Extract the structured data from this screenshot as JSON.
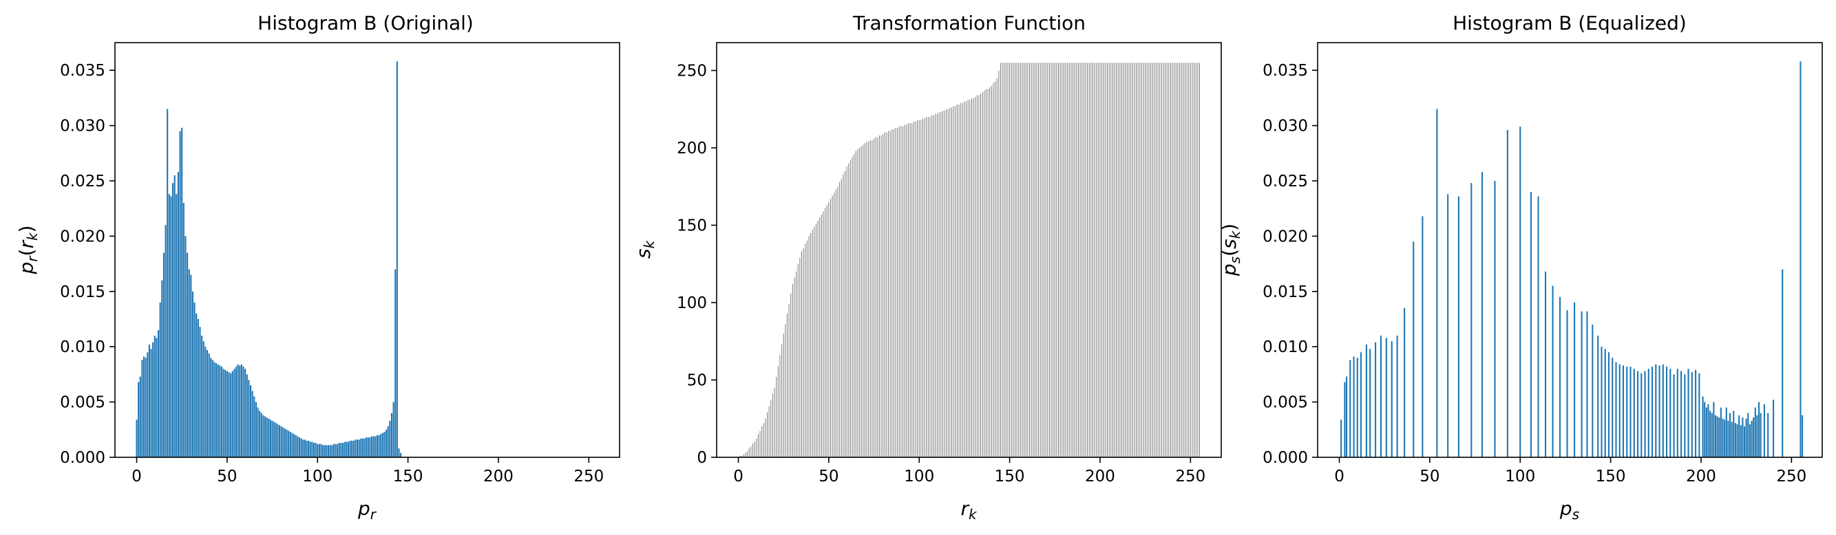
{
  "figure": {
    "background": "#ffffff"
  },
  "chart_data": [
    {
      "type": "bar",
      "title": "Histogram B (Original)",
      "xlabel_base": "p",
      "xlabel_sub": "r",
      "ylabel_base": "p",
      "ylabel_sub": "r",
      "ylabel_arg_base": "r",
      "ylabel_arg_sub": "k",
      "xlim": [
        -12,
        267
      ],
      "ylim": [
        0,
        0.0375
      ],
      "xticks": [
        0,
        50,
        100,
        150,
        200,
        250
      ],
      "yticks": [
        0.0,
        0.005,
        0.01,
        0.015,
        0.02,
        0.025,
        0.03,
        0.035
      ],
      "ytick_labels": [
        "0.000",
        "0.005",
        "0.010",
        "0.015",
        "0.020",
        "0.025",
        "0.030",
        "0.035"
      ],
      "color": "#1f77b4",
      "bar_width": 0.8,
      "x_start": 0,
      "values": [
        0.0034,
        0.0068,
        0.0073,
        0.0088,
        0.0091,
        0.009,
        0.0095,
        0.0102,
        0.0098,
        0.0104,
        0.011,
        0.0108,
        0.0115,
        0.014,
        0.016,
        0.0185,
        0.021,
        0.0315,
        0.0238,
        0.0236,
        0.0248,
        0.0255,
        0.0238,
        0.0258,
        0.0295,
        0.0298,
        0.023,
        0.02,
        0.0185,
        0.017,
        0.0165,
        0.015,
        0.014,
        0.013,
        0.0125,
        0.0118,
        0.011,
        0.0105,
        0.01,
        0.0097,
        0.0094,
        0.009,
        0.0088,
        0.0086,
        0.0085,
        0.0084,
        0.0083,
        0.0082,
        0.008,
        0.0079,
        0.0078,
        0.0077,
        0.0076,
        0.0078,
        0.008,
        0.0082,
        0.0084,
        0.0083,
        0.0084,
        0.0082,
        0.008,
        0.0075,
        0.007,
        0.0065,
        0.006,
        0.0055,
        0.005,
        0.0045,
        0.0042,
        0.004,
        0.0038,
        0.0037,
        0.0036,
        0.0035,
        0.0034,
        0.0033,
        0.0032,
        0.0031,
        0.003,
        0.0029,
        0.0028,
        0.0027,
        0.0026,
        0.0025,
        0.0024,
        0.0023,
        0.0022,
        0.0021,
        0.002,
        0.0019,
        0.0018,
        0.0017,
        0.0016,
        0.0016,
        0.0015,
        0.0015,
        0.0014,
        0.0014,
        0.0013,
        0.0013,
        0.0012,
        0.0012,
        0.0012,
        0.0011,
        0.0011,
        0.0011,
        0.0011,
        0.0011,
        0.0011,
        0.0012,
        0.0012,
        0.0012,
        0.0013,
        0.0013,
        0.0013,
        0.0014,
        0.0014,
        0.0014,
        0.0015,
        0.0015,
        0.0015,
        0.0016,
        0.0016,
        0.0016,
        0.0017,
        0.0017,
        0.0017,
        0.0018,
        0.0018,
        0.0018,
        0.0019,
        0.0019,
        0.0019,
        0.002,
        0.002,
        0.0021,
        0.0022,
        0.0023,
        0.0025,
        0.0028,
        0.0033,
        0.004,
        0.005,
        0.017,
        0.0358,
        0.0008,
        0.0004
      ]
    },
    {
      "type": "bar",
      "title": "Transformation Function",
      "xlabel_base": "r",
      "xlabel_sub": "k",
      "ylabel_base": "s",
      "ylabel_sub": "k",
      "xlim": [
        -12,
        267
      ],
      "ylim": [
        0,
        268
      ],
      "xticks": [
        0,
        50,
        100,
        150,
        200,
        250
      ],
      "yticks": [
        0,
        50,
        100,
        150,
        200,
        250
      ],
      "ytick_labels": [
        "0",
        "50",
        "100",
        "150",
        "200",
        "250"
      ],
      "color": "#808080",
      "bar_width": 0.4,
      "x_start": 0,
      "count": 256,
      "curve_points": [
        [
          0,
          0
        ],
        [
          2,
          1
        ],
        [
          5,
          4
        ],
        [
          10,
          12
        ],
        [
          15,
          25
        ],
        [
          20,
          45
        ],
        [
          25,
          80
        ],
        [
          30,
          112
        ],
        [
          35,
          133
        ],
        [
          40,
          145
        ],
        [
          45,
          155
        ],
        [
          50,
          165
        ],
        [
          55,
          175
        ],
        [
          60,
          188
        ],
        [
          65,
          198
        ],
        [
          70,
          203
        ],
        [
          80,
          209
        ],
        [
          90,
          214
        ],
        [
          100,
          218
        ],
        [
          110,
          222
        ],
        [
          120,
          227
        ],
        [
          130,
          232
        ],
        [
          135,
          236
        ],
        [
          140,
          240
        ],
        [
          143,
          245
        ],
        [
          145,
          255
        ],
        [
          255,
          255
        ]
      ]
    },
    {
      "type": "bar",
      "title": "Histogram B (Equalized)",
      "xlabel_base": "p",
      "xlabel_sub": "s",
      "ylabel_base": "p",
      "ylabel_sub": "s",
      "ylabel_arg_base": "s",
      "ylabel_arg_sub": "k",
      "xlim": [
        -12,
        267
      ],
      "ylim": [
        0,
        0.0375
      ],
      "xticks": [
        0,
        50,
        100,
        150,
        200,
        250
      ],
      "yticks": [
        0.0,
        0.005,
        0.01,
        0.015,
        0.02,
        0.025,
        0.03,
        0.035
      ],
      "ytick_labels": [
        "0.000",
        "0.005",
        "0.010",
        "0.015",
        "0.020",
        "0.025",
        "0.030",
        "0.035"
      ],
      "color": "#1f77b4",
      "bar_width": 0.8,
      "points": [
        [
          1,
          0.0034
        ],
        [
          3,
          0.0068
        ],
        [
          4,
          0.0073
        ],
        [
          6,
          0.0088
        ],
        [
          8,
          0.0091
        ],
        [
          10,
          0.009
        ],
        [
          12,
          0.0095
        ],
        [
          15,
          0.0102
        ],
        [
          17,
          0.0098
        ],
        [
          20,
          0.0104
        ],
        [
          23,
          0.011
        ],
        [
          26,
          0.0108
        ],
        [
          29,
          0.0105
        ],
        [
          32,
          0.011
        ],
        [
          36,
          0.0135
        ],
        [
          41,
          0.0195
        ],
        [
          46,
          0.0218
        ],
        [
          54,
          0.0315
        ],
        [
          60,
          0.0238
        ],
        [
          66,
          0.0236
        ],
        [
          73,
          0.0248
        ],
        [
          79,
          0.0258
        ],
        [
          86,
          0.025
        ],
        [
          93,
          0.0296
        ],
        [
          100,
          0.0299
        ],
        [
          106,
          0.024
        ],
        [
          110,
          0.0236
        ],
        [
          114,
          0.0168
        ],
        [
          118,
          0.0155
        ],
        [
          122,
          0.0145
        ],
        [
          126,
          0.0133
        ],
        [
          130,
          0.014
        ],
        [
          134,
          0.0132
        ],
        [
          137,
          0.0132
        ],
        [
          140,
          0.012
        ],
        [
          143,
          0.011
        ],
        [
          145,
          0.01
        ],
        [
          147,
          0.0098
        ],
        [
          149,
          0.0095
        ],
        [
          151,
          0.009
        ],
        [
          153,
          0.0086
        ],
        [
          155,
          0.0084
        ],
        [
          157,
          0.0083
        ],
        [
          159,
          0.0082
        ],
        [
          161,
          0.0082
        ],
        [
          163,
          0.008
        ],
        [
          165,
          0.0078
        ],
        [
          167,
          0.0076
        ],
        [
          169,
          0.0078
        ],
        [
          171,
          0.008
        ],
        [
          173,
          0.0082
        ],
        [
          175,
          0.0084
        ],
        [
          177,
          0.0083
        ],
        [
          179,
          0.0084
        ],
        [
          181,
          0.0082
        ],
        [
          183,
          0.008
        ],
        [
          185,
          0.0075
        ],
        [
          187,
          0.008
        ],
        [
          189,
          0.0078
        ],
        [
          191,
          0.0075
        ],
        [
          193,
          0.008
        ],
        [
          195,
          0.0077
        ],
        [
          197,
          0.0079
        ],
        [
          199,
          0.0076
        ],
        [
          201,
          0.0055
        ],
        [
          202,
          0.005
        ],
        [
          203,
          0.0045
        ],
        [
          204,
          0.0048
        ],
        [
          205,
          0.0042
        ],
        [
          206,
          0.004
        ],
        [
          207,
          0.005
        ],
        [
          208,
          0.0038
        ],
        [
          209,
          0.0037
        ],
        [
          210,
          0.0036
        ],
        [
          211,
          0.0045
        ],
        [
          212,
          0.0035
        ],
        [
          213,
          0.0034
        ],
        [
          214,
          0.0045
        ],
        [
          215,
          0.0033
        ],
        [
          216,
          0.004
        ],
        [
          217,
          0.0032
        ],
        [
          218,
          0.0042
        ],
        [
          219,
          0.0031
        ],
        [
          220,
          0.003
        ],
        [
          221,
          0.0038
        ],
        [
          222,
          0.0029
        ],
        [
          223,
          0.0036
        ],
        [
          224,
          0.0028
        ],
        [
          225,
          0.0035
        ],
        [
          226,
          0.004
        ],
        [
          227,
          0.003
        ],
        [
          228,
          0.0033
        ],
        [
          229,
          0.0036
        ],
        [
          230,
          0.0045
        ],
        [
          231,
          0.0038
        ],
        [
          232,
          0.005
        ],
        [
          233,
          0.004
        ],
        [
          235,
          0.0048
        ],
        [
          237,
          0.004
        ],
        [
          240,
          0.0052
        ],
        [
          245,
          0.017
        ],
        [
          255,
          0.0358
        ],
        [
          256,
          0.0038
        ]
      ]
    }
  ]
}
